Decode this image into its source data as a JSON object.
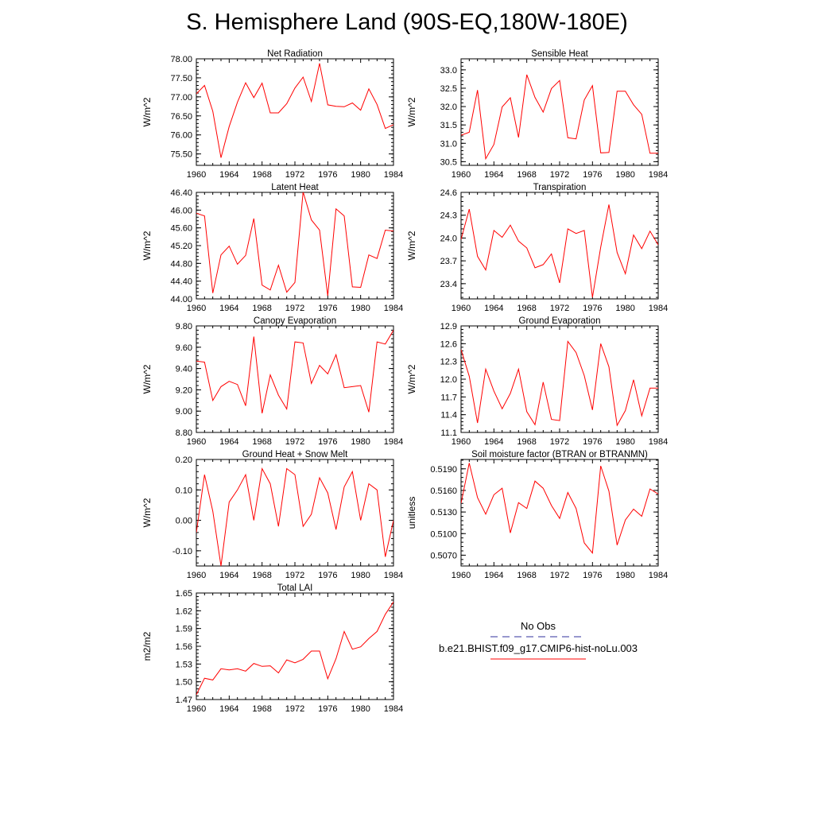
{
  "figure": {
    "title": "S. Hemisphere Land (90S-EQ,180W-180E)",
    "line_color": "#ff0000",
    "obs_color": "#5b5bb0"
  },
  "legend": {
    "obs_label": "No Obs",
    "model_label": "b.e21.BHIST.f09_g17.CMIP6-hist-noLu.003"
  },
  "chart_data": [
    {
      "type": "line",
      "title": "Net Radiation",
      "ylabel": "W/m^2",
      "x": [
        1960,
        1961,
        1962,
        1963,
        1964,
        1965,
        1966,
        1967,
        1968,
        1969,
        1970,
        1971,
        1972,
        1973,
        1974,
        1975,
        1976,
        1977,
        1978,
        1979,
        1980,
        1981,
        1982,
        1983,
        1984
      ],
      "xticks": [
        1960,
        1964,
        1968,
        1972,
        1976,
        1980,
        1984
      ],
      "xlim": [
        1960,
        1984
      ],
      "ylim": [
        75.2,
        78.0
      ],
      "yticks": [
        75.5,
        76.0,
        76.5,
        77.0,
        77.5,
        78.0
      ],
      "ytick_labels": [
        "75.50",
        "76.00",
        "76.50",
        "77.00",
        "77.50",
        "78.00"
      ],
      "values": [
        77.08,
        77.3,
        76.62,
        75.4,
        76.22,
        76.86,
        77.37,
        76.98,
        77.36,
        76.58,
        76.58,
        76.82,
        77.23,
        77.52,
        76.88,
        77.88,
        76.79,
        76.75,
        76.74,
        76.84,
        76.65,
        77.21,
        76.8,
        76.17,
        76.27
      ]
    },
    {
      "type": "line",
      "title": "Sensible Heat",
      "ylabel": "W/m^2",
      "x": [
        1960,
        1961,
        1962,
        1963,
        1964,
        1965,
        1966,
        1967,
        1968,
        1969,
        1970,
        1971,
        1972,
        1973,
        1974,
        1975,
        1976,
        1977,
        1978,
        1979,
        1980,
        1981,
        1982,
        1983,
        1984
      ],
      "xticks": [
        1960,
        1964,
        1968,
        1972,
        1976,
        1980,
        1984
      ],
      "xlim": [
        1960,
        1984
      ],
      "ylim": [
        30.4,
        33.3
      ],
      "yticks": [
        30.5,
        31.0,
        31.5,
        32.0,
        32.5,
        33.0
      ],
      "ytick_labels": [
        "30.5",
        "31.0",
        "31.5",
        "32.0",
        "32.5",
        "33.0"
      ],
      "values": [
        31.22,
        31.3,
        32.45,
        30.58,
        30.97,
        31.99,
        32.24,
        31.16,
        32.87,
        32.25,
        31.85,
        32.49,
        32.71,
        31.15,
        31.12,
        32.18,
        32.57,
        30.74,
        30.75,
        32.42,
        32.42,
        32.05,
        31.79,
        30.73,
        30.73
      ]
    },
    {
      "type": "line",
      "title": "Latent Heat",
      "ylabel": "W/m^2",
      "x": [
        1960,
        1961,
        1962,
        1963,
        1964,
        1965,
        1966,
        1967,
        1968,
        1969,
        1970,
        1971,
        1972,
        1973,
        1974,
        1975,
        1976,
        1977,
        1978,
        1979,
        1980,
        1981,
        1982,
        1983,
        1984
      ],
      "xticks": [
        1960,
        1964,
        1968,
        1972,
        1976,
        1980,
        1984
      ],
      "xlim": [
        1960,
        1984
      ],
      "ylim": [
        44.0,
        46.4
      ],
      "yticks": [
        44.0,
        44.4,
        44.8,
        45.2,
        45.6,
        46.0,
        46.4
      ],
      "ytick_labels": [
        "44.00",
        "44.40",
        "44.80",
        "45.20",
        "45.60",
        "46.00",
        "46.40"
      ],
      "values": [
        45.93,
        45.87,
        44.13,
        44.99,
        45.19,
        44.78,
        44.98,
        45.81,
        44.31,
        44.2,
        44.76,
        44.15,
        44.37,
        46.41,
        45.78,
        45.55,
        44.07,
        46.03,
        45.87,
        44.27,
        44.26,
        44.99,
        44.91,
        45.55,
        45.53
      ]
    },
    {
      "type": "line",
      "title": "Transpiration",
      "ylabel": "W/m^2",
      "x": [
        1960,
        1961,
        1962,
        1963,
        1964,
        1965,
        1966,
        1967,
        1968,
        1969,
        1970,
        1971,
        1972,
        1973,
        1974,
        1975,
        1976,
        1977,
        1978,
        1979,
        1980,
        1981,
        1982,
        1983,
        1984
      ],
      "xticks": [
        1960,
        1964,
        1968,
        1972,
        1976,
        1980,
        1984
      ],
      "xlim": [
        1960,
        1984
      ],
      "ylim": [
        23.2,
        24.6
      ],
      "yticks": [
        23.4,
        23.7,
        24.0,
        24.3,
        24.6
      ],
      "ytick_labels": [
        "23.4",
        "23.7",
        "24.0",
        "24.3",
        "24.6"
      ],
      "values": [
        23.98,
        24.38,
        23.76,
        23.58,
        24.1,
        24.01,
        24.17,
        23.96,
        23.87,
        23.61,
        23.65,
        23.79,
        23.41,
        24.12,
        24.06,
        24.1,
        23.22,
        23.88,
        24.44,
        23.81,
        23.53,
        24.04,
        23.86,
        24.09,
        23.91
      ]
    },
    {
      "type": "line",
      "title": "Canopy Evaporation",
      "ylabel": "W/m^2",
      "x": [
        1960,
        1961,
        1962,
        1963,
        1964,
        1965,
        1966,
        1967,
        1968,
        1969,
        1970,
        1971,
        1972,
        1973,
        1974,
        1975,
        1976,
        1977,
        1978,
        1979,
        1980,
        1981,
        1982,
        1983,
        1984
      ],
      "xticks": [
        1960,
        1964,
        1968,
        1972,
        1976,
        1980,
        1984
      ],
      "xlim": [
        1960,
        1984
      ],
      "ylim": [
        8.8,
        9.8
      ],
      "yticks": [
        8.8,
        9.0,
        9.2,
        9.4,
        9.6,
        9.8
      ],
      "ytick_labels": [
        "8.80",
        "9.00",
        "9.20",
        "9.40",
        "9.60",
        "9.80"
      ],
      "values": [
        9.47,
        9.46,
        9.1,
        9.23,
        9.28,
        9.25,
        9.05,
        9.7,
        8.98,
        9.34,
        9.15,
        9.02,
        9.65,
        9.64,
        9.26,
        9.43,
        9.35,
        9.53,
        9.22,
        9.23,
        9.24,
        8.99,
        9.65,
        9.63,
        9.76
      ]
    },
    {
      "type": "line",
      "title": "Ground Evaporation",
      "ylabel": "W/m^2",
      "x": [
        1960,
        1961,
        1962,
        1963,
        1964,
        1965,
        1966,
        1967,
        1968,
        1969,
        1970,
        1971,
        1972,
        1973,
        1974,
        1975,
        1976,
        1977,
        1978,
        1979,
        1980,
        1981,
        1982,
        1983,
        1984
      ],
      "xticks": [
        1960,
        1964,
        1968,
        1972,
        1976,
        1980,
        1984
      ],
      "xlim": [
        1960,
        1984
      ],
      "ylim": [
        11.1,
        12.9
      ],
      "yticks": [
        11.1,
        11.4,
        11.7,
        12.0,
        12.3,
        12.6,
        12.9
      ],
      "ytick_labels": [
        "11.1",
        "11.4",
        "11.7",
        "12.0",
        "12.3",
        "12.6",
        "12.9"
      ],
      "values": [
        12.5,
        12.05,
        11.26,
        12.17,
        11.8,
        11.5,
        11.76,
        12.17,
        11.45,
        11.23,
        11.95,
        11.32,
        11.3,
        12.64,
        12.45,
        12.06,
        11.48,
        12.6,
        12.21,
        11.22,
        11.47,
        11.99,
        11.38,
        11.85,
        11.85
      ]
    },
    {
      "type": "line",
      "title": "Ground Heat + Snow Melt",
      "ylabel": "W/m^2",
      "x": [
        1960,
        1961,
        1962,
        1963,
        1964,
        1965,
        1966,
        1967,
        1968,
        1969,
        1970,
        1971,
        1972,
        1973,
        1974,
        1975,
        1976,
        1977,
        1978,
        1979,
        1980,
        1981,
        1982,
        1983,
        1984
      ],
      "xticks": [
        1960,
        1964,
        1968,
        1972,
        1976,
        1980,
        1984
      ],
      "xlim": [
        1960,
        1984
      ],
      "ylim": [
        -0.15,
        0.2
      ],
      "yticks": [
        -0.1,
        0.0,
        0.1,
        0.2
      ],
      "ytick_labels": [
        "-0.10",
        "0.00",
        "0.10",
        "0.20"
      ],
      "values": [
        -0.04,
        0.15,
        0.03,
        -0.15,
        0.06,
        0.1,
        0.15,
        0.0,
        0.17,
        0.12,
        -0.02,
        0.17,
        0.15,
        -0.02,
        0.02,
        0.14,
        0.09,
        -0.03,
        0.11,
        0.16,
        0.0,
        0.12,
        0.1,
        -0.12,
        0.0
      ]
    },
    {
      "type": "line",
      "title": "Soil moisture factor (BTRAN or BTRANMN)",
      "ylabel": "unitless",
      "x": [
        1960,
        1961,
        1962,
        1963,
        1964,
        1965,
        1966,
        1967,
        1968,
        1969,
        1970,
        1971,
        1972,
        1973,
        1974,
        1975,
        1976,
        1977,
        1978,
        1979,
        1980,
        1981,
        1982,
        1983,
        1984
      ],
      "xticks": [
        1960,
        1964,
        1968,
        1972,
        1976,
        1980,
        1984
      ],
      "xlim": [
        1960,
        1984
      ],
      "ylim": [
        0.5055,
        0.5203
      ],
      "yticks": [
        0.507,
        0.51,
        0.513,
        0.516,
        0.519
      ],
      "ytick_labels": [
        "0.5070",
        "0.5100",
        "0.5130",
        "0.5160",
        "0.5190"
      ],
      "values": [
        0.5142,
        0.5198,
        0.515,
        0.5127,
        0.5154,
        0.5163,
        0.5101,
        0.5143,
        0.5135,
        0.5173,
        0.5163,
        0.5139,
        0.5121,
        0.5157,
        0.5135,
        0.5087,
        0.5073,
        0.5194,
        0.5159,
        0.5084,
        0.5119,
        0.5134,
        0.5124,
        0.5162,
        0.5155
      ]
    },
    {
      "type": "line",
      "title": "Total LAI",
      "ylabel": "m2/m2",
      "x": [
        1960,
        1961,
        1962,
        1963,
        1964,
        1965,
        1966,
        1967,
        1968,
        1969,
        1970,
        1971,
        1972,
        1973,
        1974,
        1975,
        1976,
        1977,
        1978,
        1979,
        1980,
        1981,
        1982,
        1983,
        1984
      ],
      "xticks": [
        1960,
        1964,
        1968,
        1972,
        1976,
        1980,
        1984
      ],
      "xlim": [
        1960,
        1984
      ],
      "ylim": [
        1.47,
        1.65
      ],
      "yticks": [
        1.47,
        1.5,
        1.53,
        1.56,
        1.59,
        1.62,
        1.65
      ],
      "ytick_labels": [
        "1.47",
        "1.50",
        "1.53",
        "1.56",
        "1.59",
        "1.62",
        "1.65"
      ],
      "values": [
        1.478,
        1.506,
        1.503,
        1.522,
        1.52,
        1.522,
        1.518,
        1.531,
        1.526,
        1.527,
        1.515,
        1.537,
        1.532,
        1.538,
        1.552,
        1.552,
        1.505,
        1.539,
        1.585,
        1.555,
        1.559,
        1.573,
        1.585,
        1.614,
        1.635
      ]
    }
  ]
}
